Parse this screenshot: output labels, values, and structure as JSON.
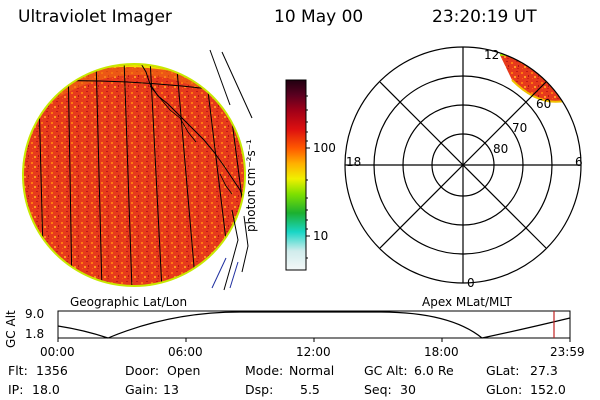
{
  "header": {
    "instrument": "Ultraviolet Imager",
    "date": "10 May 00",
    "time": "23:20:19 UT"
  },
  "colorbar": {
    "unit_label": "photon cm⁻²s⁻¹",
    "ticks": [
      "100",
      "10"
    ]
  },
  "polar_plot": {
    "mlt_labels": {
      "top": "12",
      "right": "6",
      "bottom": "0",
      "left": "18"
    },
    "mlat_labels": [
      "60",
      "70",
      "80"
    ]
  },
  "map_titles": {
    "left": "Geographic Lat/Lon",
    "right": "Apex MLat/MLT"
  },
  "orbit_plot": {
    "ylabel": "GC Alt",
    "y_ticks": [
      "9.0",
      "1.8"
    ],
    "x_ticks": [
      "00:00",
      "06:00",
      "12:00",
      "18:00",
      "23:59"
    ]
  },
  "info": {
    "row1": [
      {
        "label": "Flt:",
        "value": "1356"
      },
      {
        "label": "Door:",
        "value": "Open"
      },
      {
        "label": "Mode:",
        "value": "Normal"
      },
      {
        "label": "GC Alt:",
        "value": "6.0 Re"
      },
      {
        "label": "GLat:",
        "value": "27.3"
      }
    ],
    "row2": [
      {
        "label": "IP:",
        "value": "18.0"
      },
      {
        "label": "Gain:",
        "value": "13"
      },
      {
        "label": "Dsp:",
        "value": "5.5"
      },
      {
        "label": "Seq:",
        "value": "30"
      },
      {
        "label": "GLon:",
        "value": "152.0"
      }
    ]
  },
  "colors": {
    "disk_fill": "#e6301c",
    "disk_edge": "#8fd400",
    "colorbar_scale": [
      "#e8f4f4",
      "#19d6c6",
      "#1cb030",
      "#7fe000",
      "#f0f000",
      "#ffa000",
      "#ff5000",
      "#cc0000",
      "#7a0020",
      "#300010"
    ]
  }
}
